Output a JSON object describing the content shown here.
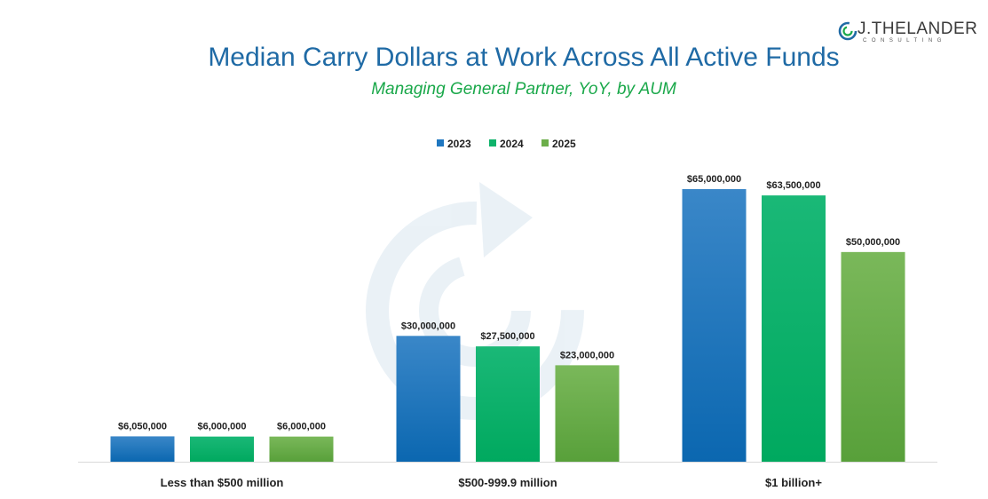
{
  "logo": {
    "name": "J.THELANDER",
    "sub": "CONSULTING"
  },
  "chart_data": {
    "type": "bar",
    "title": "Median Carry Dollars at Work Across All Active Funds",
    "subtitle": "Managing General Partner, YoY, by AUM",
    "categories": [
      "Less than $500 million",
      "$500-999.9 million",
      "$1 billion+"
    ],
    "series": [
      {
        "name": "2023",
        "values": [
          6050000,
          30000000,
          65000000
        ],
        "labels": [
          "$6,050,000",
          "$30,000,000",
          "$65,000,000"
        ]
      },
      {
        "name": "2024",
        "values": [
          6000000,
          27500000,
          63500000
        ],
        "labels": [
          "$6,000,000",
          "$27,500,000",
          "$63,500,000"
        ]
      },
      {
        "name": "2025",
        "values": [
          6000000,
          23000000,
          50000000
        ],
        "labels": [
          "$6,000,000",
          "$23,000,000",
          "$50,000,000"
        ]
      }
    ],
    "ylim": [
      0,
      70000000
    ],
    "grid": false,
    "legend_position": "top-center",
    "colors": [
      "#1f77c0",
      "#0fb36b",
      "#6cae4a"
    ]
  }
}
